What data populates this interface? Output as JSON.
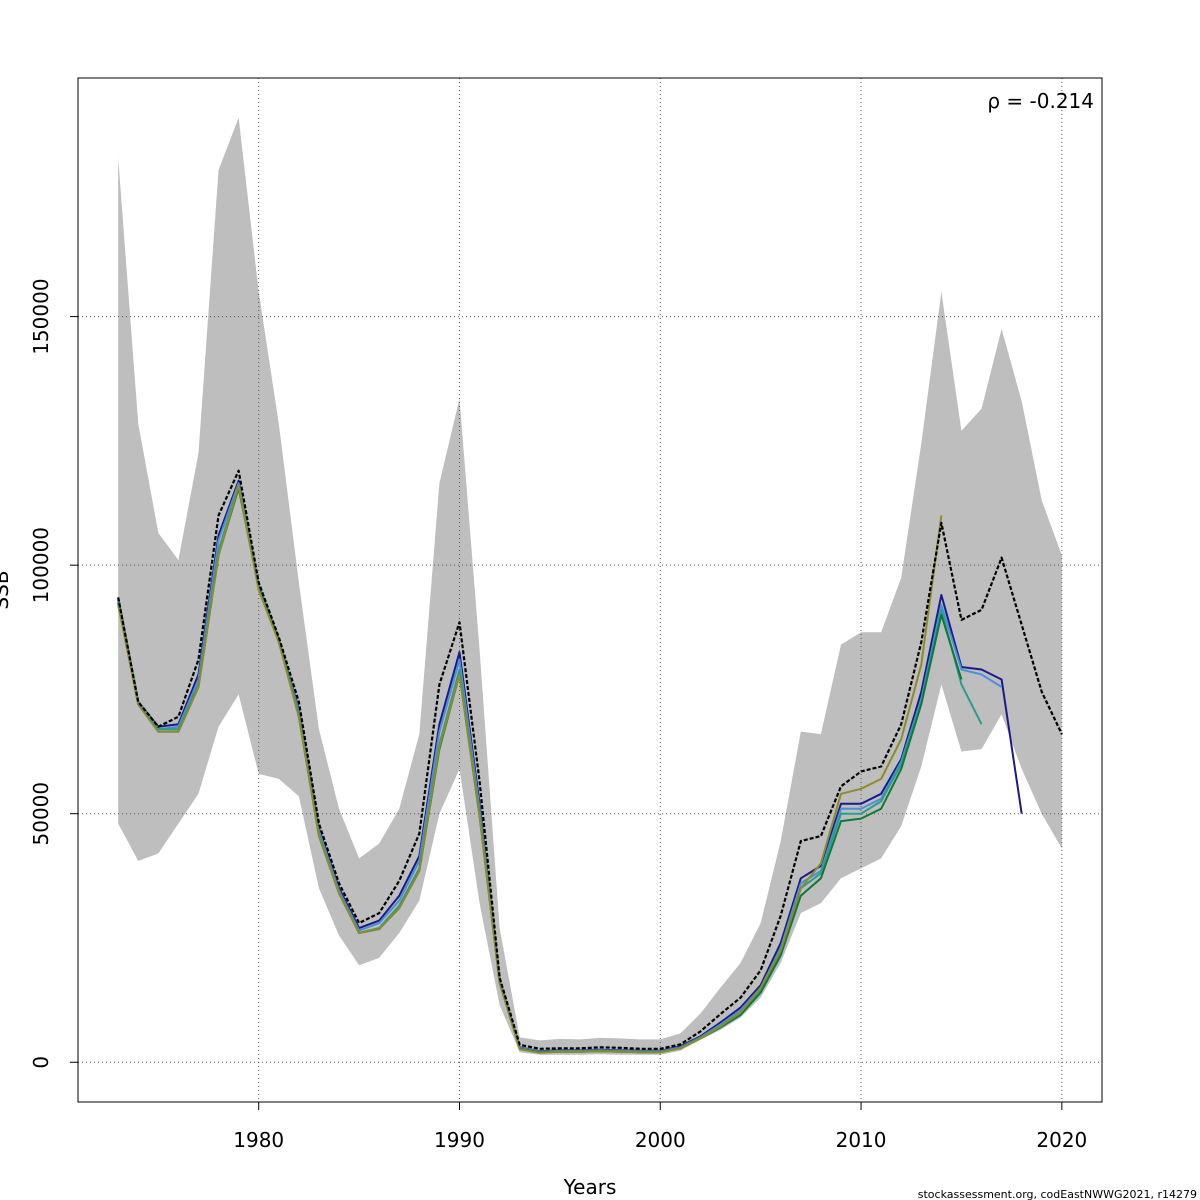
{
  "chart_data": {
    "type": "line",
    "title": "",
    "xlabel": "Years",
    "ylabel": "SSB",
    "xlim": [
      1971,
      2022
    ],
    "ylim": [
      -8000,
      198000
    ],
    "x_ticks": [
      1980,
      1990,
      2000,
      2010,
      2020
    ],
    "x_tick_labels": [
      "1980",
      "1990",
      "2000",
      "2010",
      "2020"
    ],
    "y_ticks": [
      0,
      50000,
      100000,
      150000
    ],
    "y_tick_labels": [
      "0",
      "50000",
      "100000",
      "150000"
    ],
    "grid": true,
    "annotation": "ρ = -0.214",
    "credit": "stockassessment.org, codEastNWWG2021, r14279",
    "band_color": "#bebebe",
    "confidence_band": {
      "x": [
        1973,
        1974,
        1975,
        1976,
        1977,
        1978,
        1979,
        1980,
        1981,
        1982,
        1983,
        1984,
        1985,
        1986,
        1987,
        1988,
        1989,
        1990,
        1991,
        1992,
        1993,
        1994,
        1995,
        1996,
        1997,
        1998,
        1999,
        2000,
        2001,
        2002,
        2003,
        2004,
        2005,
        2006,
        2007,
        2008,
        2009,
        2010,
        2011,
        2012,
        2013,
        2014,
        2015,
        2016,
        2017,
        2018,
        2019,
        2020
      ],
      "lower": [
        48000,
        40500,
        42000,
        48000,
        54000,
        67500,
        74000,
        58000,
        57000,
        53500,
        35000,
        25500,
        19500,
        21000,
        26000,
        32500,
        50000,
        59000,
        32000,
        11500,
        2000,
        1500,
        1500,
        1500,
        1600,
        1500,
        1500,
        1500,
        2300,
        4500,
        6500,
        9000,
        13000,
        20000,
        30000,
        32000,
        37000,
        39000,
        41000,
        47500,
        59500,
        76000,
        62500,
        63000,
        70000,
        59000,
        50000,
        43000
      ],
      "upper": [
        182000,
        128500,
        106500,
        101000,
        122500,
        179500,
        190000,
        155000,
        128500,
        96500,
        67000,
        51000,
        41000,
        44000,
        51000,
        66000,
        116500,
        133500,
        83000,
        27000,
        5000,
        4400,
        4700,
        4600,
        4900,
        4800,
        4600,
        4600,
        5800,
        9800,
        15000,
        20000,
        28000,
        44500,
        66500,
        66000,
        84000,
        86500,
        86500,
        97500,
        124500,
        155000,
        127000,
        131500,
        147500,
        133000,
        113000,
        102000
      ]
    },
    "series": [
      {
        "color": "#000000",
        "dashed": true,
        "x": [
          1973,
          1974,
          1975,
          1976,
          1977,
          1978,
          1979,
          1980,
          1981,
          1982,
          1983,
          1984,
          1985,
          1986,
          1987,
          1988,
          1989,
          1990,
          1991,
          1992,
          1993,
          1994,
          1995,
          1996,
          1997,
          1998,
          1999,
          2000,
          2001,
          2002,
          2003,
          2004,
          2005,
          2006,
          2007,
          2008,
          2009,
          2010,
          2011,
          2012,
          2013,
          2014,
          2015,
          2016,
          2017,
          2018,
          2019,
          2020
        ],
        "y": [
          93500,
          72500,
          67500,
          69500,
          81000,
          110000,
          119000,
          96500,
          85500,
          72500,
          48000,
          36000,
          28000,
          30000,
          36500,
          46000,
          76000,
          88500,
          56500,
          17000,
          3500,
          2700,
          2800,
          2800,
          3000,
          2900,
          2700,
          2700,
          3600,
          6200,
          9700,
          13000,
          18500,
          29500,
          44500,
          45500,
          55500,
          58500,
          59500,
          68000,
          84500,
          108500,
          89000,
          91000,
          101500,
          88000,
          74500,
          66000
        ]
      },
      {
        "color": "#1a1a8c",
        "x": [
          1973,
          1974,
          1975,
          1976,
          1977,
          1978,
          1979,
          1980,
          1981,
          1982,
          1983,
          1984,
          1985,
          1986,
          1987,
          1988,
          1989,
          1990,
          1991,
          1992,
          1993,
          1994,
          1995,
          1996,
          1997,
          1998,
          1999,
          2000,
          2001,
          2002,
          2003,
          2004,
          2005,
          2006,
          2007,
          2008,
          2009,
          2010,
          2011,
          2012,
          2013,
          2014,
          2015,
          2016,
          2017,
          2018
        ],
        "y": [
          93500,
          72500,
          67500,
          68000,
          78000,
          106000,
          117000,
          96000,
          85000,
          71000,
          47000,
          35000,
          27000,
          28500,
          33500,
          41500,
          68000,
          82500,
          52000,
          16500,
          3000,
          2200,
          2400,
          2400,
          2500,
          2400,
          2300,
          2300,
          3200,
          5200,
          8000,
          11000,
          15500,
          24000,
          37000,
          39500,
          52000,
          52000,
          54000,
          61000,
          74500,
          94000,
          79500,
          79000,
          77000,
          50000
        ]
      },
      {
        "color": "#4a90d9",
        "x": [
          1973,
          1974,
          1975,
          1976,
          1977,
          1978,
          1979,
          1980,
          1981,
          1982,
          1983,
          1984,
          1985,
          1986,
          1987,
          1988,
          1989,
          1990,
          1991,
          1992,
          1993,
          1994,
          1995,
          1996,
          1997,
          1998,
          1999,
          2000,
          2001,
          2002,
          2003,
          2004,
          2005,
          2006,
          2007,
          2008,
          2009,
          2010,
          2011,
          2012,
          2013,
          2014,
          2015,
          2016,
          2017
        ],
        "y": [
          93000,
          72500,
          67000,
          67500,
          77000,
          105000,
          116500,
          96000,
          85000,
          70500,
          46500,
          34500,
          26500,
          28000,
          32500,
          40500,
          66500,
          81000,
          51000,
          16500,
          2900,
          2100,
          2300,
          2300,
          2400,
          2300,
          2200,
          2200,
          3000,
          5000,
          7600,
          10500,
          15000,
          23000,
          36000,
          38500,
          51000,
          51000,
          53000,
          60500,
          73000,
          92000,
          79000,
          78000,
          75500
        ]
      },
      {
        "color": "#2a9d8f",
        "x": [
          1973,
          1974,
          1975,
          1976,
          1977,
          1978,
          1979,
          1980,
          1981,
          1982,
          1983,
          1984,
          1985,
          1986,
          1987,
          1988,
          1989,
          1990,
          1991,
          1992,
          1993,
          1994,
          1995,
          1996,
          1997,
          1998,
          1999,
          2000,
          2001,
          2002,
          2003,
          2004,
          2005,
          2006,
          2007,
          2008,
          2009,
          2010,
          2011,
          2012,
          2013,
          2014,
          2015,
          2016
        ],
        "y": [
          92500,
          72000,
          67000,
          67000,
          76000,
          103000,
          116000,
          96000,
          85000,
          70000,
          46000,
          34000,
          26000,
          27000,
          31500,
          39000,
          64000,
          79000,
          50000,
          16000,
          2700,
          2000,
          2200,
          2200,
          2300,
          2200,
          2100,
          2100,
          2900,
          4900,
          7300,
          10000,
          14500,
          22000,
          35000,
          38000,
          50000,
          50000,
          52500,
          60000,
          72500,
          91000,
          76000,
          68000
        ]
      },
      {
        "color": "#0f7a36",
        "x": [
          1973,
          1974,
          1975,
          1976,
          1977,
          1978,
          1979,
          1980,
          1981,
          1982,
          1983,
          1984,
          1985,
          1986,
          1987,
          1988,
          1989,
          1990,
          1991,
          1992,
          1993,
          1994,
          1995,
          1996,
          1997,
          1998,
          1999,
          2000,
          2001,
          2002,
          2003,
          2004,
          2005,
          2006,
          2007,
          2008,
          2009,
          2010,
          2011,
          2012,
          2013,
          2014,
          2015
        ],
        "y": [
          92500,
          72000,
          66500,
          66500,
          75500,
          102000,
          115500,
          95500,
          85000,
          69500,
          45500,
          34000,
          26000,
          26800,
          31000,
          38500,
          63000,
          78000,
          49500,
          16000,
          2700,
          2000,
          2100,
          2100,
          2200,
          2100,
          2000,
          2000,
          2800,
          4800,
          7000,
          9500,
          14000,
          21500,
          33500,
          37000,
          48500,
          49000,
          51000,
          59000,
          72000,
          90000,
          77000
        ]
      },
      {
        "color": "#8c8c2a",
        "x": [
          1973,
          1974,
          1975,
          1976,
          1977,
          1978,
          1979,
          1980,
          1981,
          1982,
          1983,
          1984,
          1985,
          1986,
          1987,
          1988,
          1989,
          1990,
          1991,
          1992,
          1993,
          1994,
          1995,
          1996,
          1997,
          1998,
          1999,
          2000,
          2001,
          2002,
          2003,
          2004,
          2005,
          2006,
          2007,
          2008,
          2009,
          2010,
          2011,
          2012,
          2013,
          2014
        ],
        "y": [
          92000,
          72000,
          66500,
          66500,
          75500,
          102000,
          116000,
          95000,
          84500,
          69500,
          45500,
          34000,
          26000,
          26800,
          31000,
          38500,
          63500,
          78000,
          49500,
          16000,
          2600,
          1900,
          2100,
          2100,
          2200,
          2100,
          2000,
          2000,
          2800,
          4800,
          7200,
          10000,
          15000,
          22500,
          35000,
          40000,
          54000,
          55000,
          57000,
          65000,
          80000,
          110000
        ]
      }
    ]
  }
}
